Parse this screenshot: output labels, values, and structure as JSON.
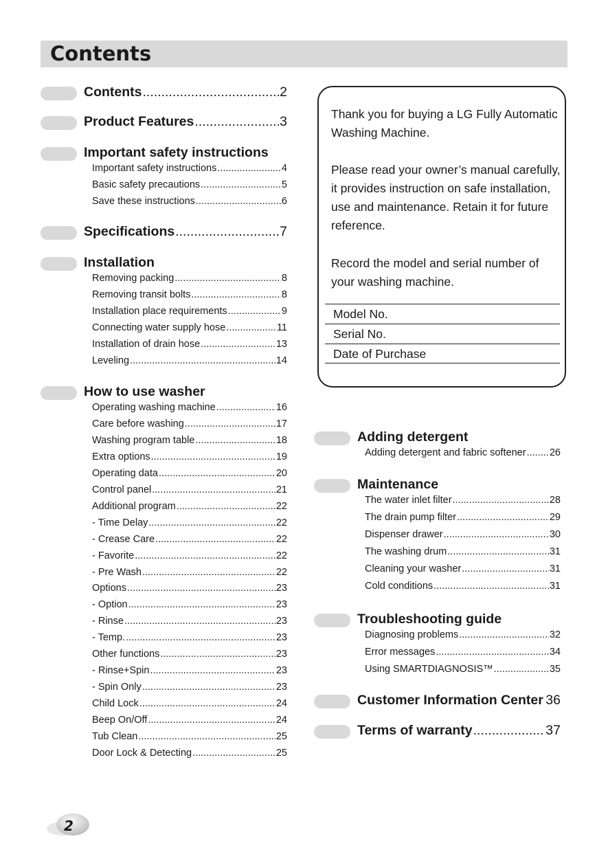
{
  "header": {
    "title": "Contents"
  },
  "left_sections": [
    {
      "title": "Contents",
      "page": "2",
      "items": []
    },
    {
      "title": "Product Features",
      "page": "3",
      "items": []
    },
    {
      "title": "Important safety instructions",
      "page": "",
      "items": [
        {
          "label": "Important safety instructions",
          "page": "4"
        },
        {
          "label": "Basic safety precautions",
          "page": "5"
        },
        {
          "label": "Save these instructions",
          "page": "6"
        }
      ]
    },
    {
      "title": "Specifications",
      "page": "7",
      "items": []
    },
    {
      "title": "Installation",
      "page": "",
      "items": [
        {
          "label": "Removing packing",
          "page": "8"
        },
        {
          "label": "Removing transit bolts",
          "page": "8"
        },
        {
          "label": "Installation place requirements",
          "page": "9"
        },
        {
          "label": "Connecting water supply hose",
          "page": "11"
        },
        {
          "label": "Installation of drain hose",
          "page": "13"
        },
        {
          "label": "Leveling",
          "page": "14"
        }
      ]
    },
    {
      "title": "How to use washer",
      "page": "",
      "items": [
        {
          "label": "Operating washing machine",
          "page": "16"
        },
        {
          "label": "Care before washing",
          "page": "17"
        },
        {
          "label": "Washing program table",
          "page": "18"
        },
        {
          "label": "Extra options",
          "page": "19"
        },
        {
          "label": "Operating data",
          "page": "20"
        },
        {
          "label": "Control panel",
          "page": "21"
        },
        {
          "label": "Additional program",
          "page": "22"
        },
        {
          "label": "- Time Delay",
          "page": "22"
        },
        {
          "label": "- Crease Care",
          "page": "22"
        },
        {
          "label": "- Favorite",
          "page": "22"
        },
        {
          "label": "- Pre Wash",
          "page": "22"
        },
        {
          "label": "Options",
          "page": "23"
        },
        {
          "label": "- Option",
          "page": "23"
        },
        {
          "label": "- Rinse",
          "page": "23"
        },
        {
          "label": "- Temp.",
          "page": "23"
        },
        {
          "label": "Other functions",
          "page": "23"
        },
        {
          "label": "- Rinse+Spin",
          "page": "23"
        },
        {
          "label": "- Spin Only",
          "page": "23"
        },
        {
          "label": "Child Lock",
          "page": "24"
        },
        {
          "label": "Beep On/Off",
          "page": "24"
        },
        {
          "label": "Tub Clean",
          "page": "25"
        },
        {
          "label": "Door Lock & Detecting",
          "page": "25"
        }
      ]
    }
  ],
  "right_sections": [
    {
      "title": "Adding detergent",
      "page": "",
      "items": [
        {
          "label": "Adding detergent and fabric softener",
          "page": "26"
        }
      ]
    },
    {
      "title": "Maintenance",
      "page": "",
      "items": [
        {
          "label": "The water inlet filter",
          "page": "28"
        },
        {
          "label": "The drain pump filter",
          "page": "29"
        },
        {
          "label": "Dispenser drawer",
          "page": "30"
        },
        {
          "label": "The washing drum",
          "page": "31"
        },
        {
          "label": "Cleaning your washer",
          "page": "31"
        },
        {
          "label": "Cold conditions",
          "page": "31"
        }
      ]
    },
    {
      "title": "Troubleshooting guide",
      "page": "",
      "items": [
        {
          "label": "Diagnosing problems",
          "page": "32"
        },
        {
          "label": "Error messages",
          "page": "34"
        },
        {
          "label": "Using SMARTDIAGNOSIS™",
          "page": "35"
        }
      ]
    },
    {
      "title": "Customer Information Center",
      "page": "36",
      "items": []
    },
    {
      "title": "Terms of warranty",
      "page": "37",
      "items": []
    }
  ],
  "notice": {
    "p1": "Thank you for buying a LG Fully Automatic Washing Machine.",
    "p2": "Please read your owner’s manual carefully, it provides instruction on safe installation, use and maintenance. Retain it for future reference.",
    "p3": "Record the model and serial number of your washing machine.",
    "fields": [
      "Model No.",
      "Serial No.",
      "Date of Purchase"
    ]
  },
  "page_number": "2"
}
